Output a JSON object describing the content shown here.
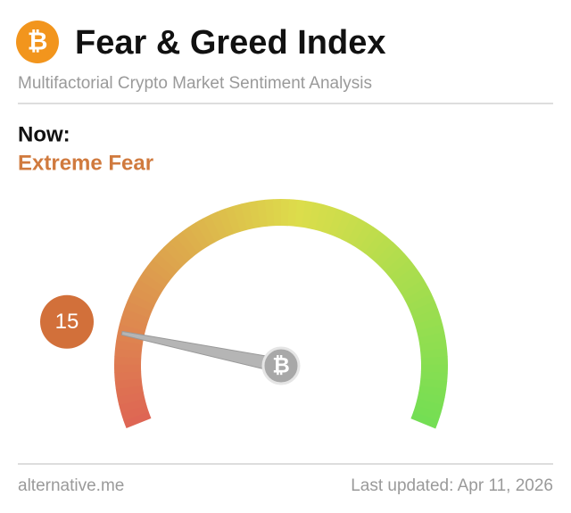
{
  "chart_data": {
    "type": "gauge",
    "title": "Fear & Greed Index",
    "subtitle": "Multifactorial Crypto Market Sentiment Analysis",
    "label": "Now:",
    "classification": "Extreme Fear",
    "value": 15,
    "ylim": [
      0,
      100
    ],
    "source": "alternative.me",
    "updated": "Last updated: Apr 11, 2026"
  }
}
